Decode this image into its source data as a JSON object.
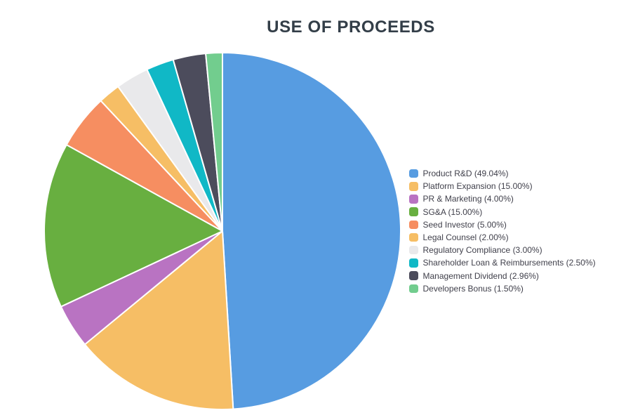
{
  "page": {
    "background_color": "#ffffff",
    "title_color": "#333e48",
    "legend_text_color": "#40404b"
  },
  "chart_data": {
    "type": "pie",
    "title": "USE OF PROCEEDS",
    "start_angle_deg": 0,
    "direction": "clockwise",
    "legend_position": "right",
    "slice_separator_color": "#ffffff",
    "slices": [
      {
        "label": "Product R&D",
        "value": 49.04,
        "legend_label": "Product R&D (49.04%)",
        "color": "#579ce1"
      },
      {
        "label": "Platform Expansion",
        "value": 15.0,
        "legend_label": "Platform Expansion (15.00%)",
        "color": "#f6be65"
      },
      {
        "label": "PR & Marketing",
        "value": 4.0,
        "legend_label": "PR & Marketing (4.00%)",
        "color": "#b973c2"
      },
      {
        "label": "SG&A",
        "value": 15.0,
        "legend_label": "SG&A (15.00%)",
        "color": "#68af40"
      },
      {
        "label": "Seed Investor",
        "value": 5.0,
        "legend_label": "Seed Investor (5.00%)",
        "color": "#f68e61"
      },
      {
        "label": "Legal Counsel",
        "value": 2.0,
        "legend_label": "Legal Counsel (2.00%)",
        "color": "#f6be65"
      },
      {
        "label": "Regulatory Compliance",
        "value": 3.0,
        "legend_label": "Regulatory Compliance (3.00%)",
        "color": "#e9e9eb"
      },
      {
        "label": "Shareholder Loan & Reimbursements",
        "value": 2.5,
        "legend_label": "Shareholder Loan & Reimbursements (2.50%)",
        "color": "#10b8c6"
      },
      {
        "label": "Management Dividend",
        "value": 2.96,
        "legend_label": "Management Dividend (2.96%)",
        "color": "#4c4c5c"
      },
      {
        "label": "Developers Bonus",
        "value": 1.5,
        "legend_label": "Developers Bonus (1.50%)",
        "color": "#72cd8e"
      }
    ]
  }
}
